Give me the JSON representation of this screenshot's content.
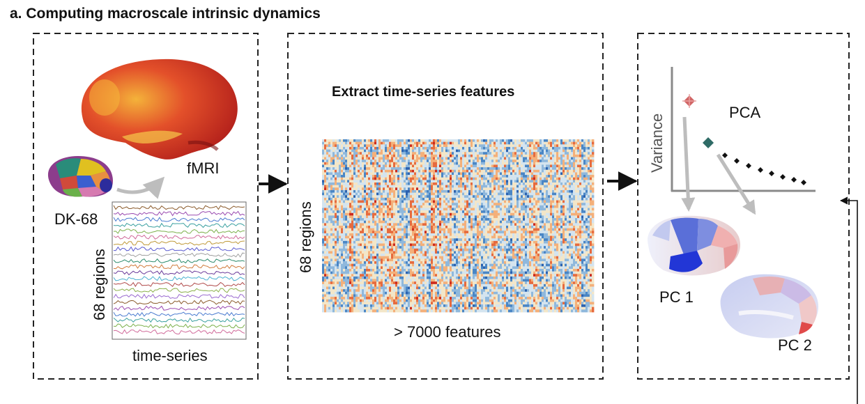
{
  "title": "a. Computing macroscale intrinsic dynamics",
  "panel1": {
    "fmri_label": "fMRI",
    "atlas_label": "DK-68",
    "regions_label": "68 regions",
    "timeseries_label": "time-series"
  },
  "panel2": {
    "heading": "Extract time-series features",
    "regions_label": "68 regions",
    "features_label": "> 7000 features"
  },
  "panel3": {
    "pca_label": "PCA",
    "variance_label": "Variance",
    "pc1_label": "PC 1",
    "pc2_label": "PC 2"
  },
  "colors": {
    "heat_red": "#d7301f",
    "heat_blue": "#4a86c5",
    "pca_first": "#c94a4a",
    "pca_second": "#2f6b66"
  }
}
